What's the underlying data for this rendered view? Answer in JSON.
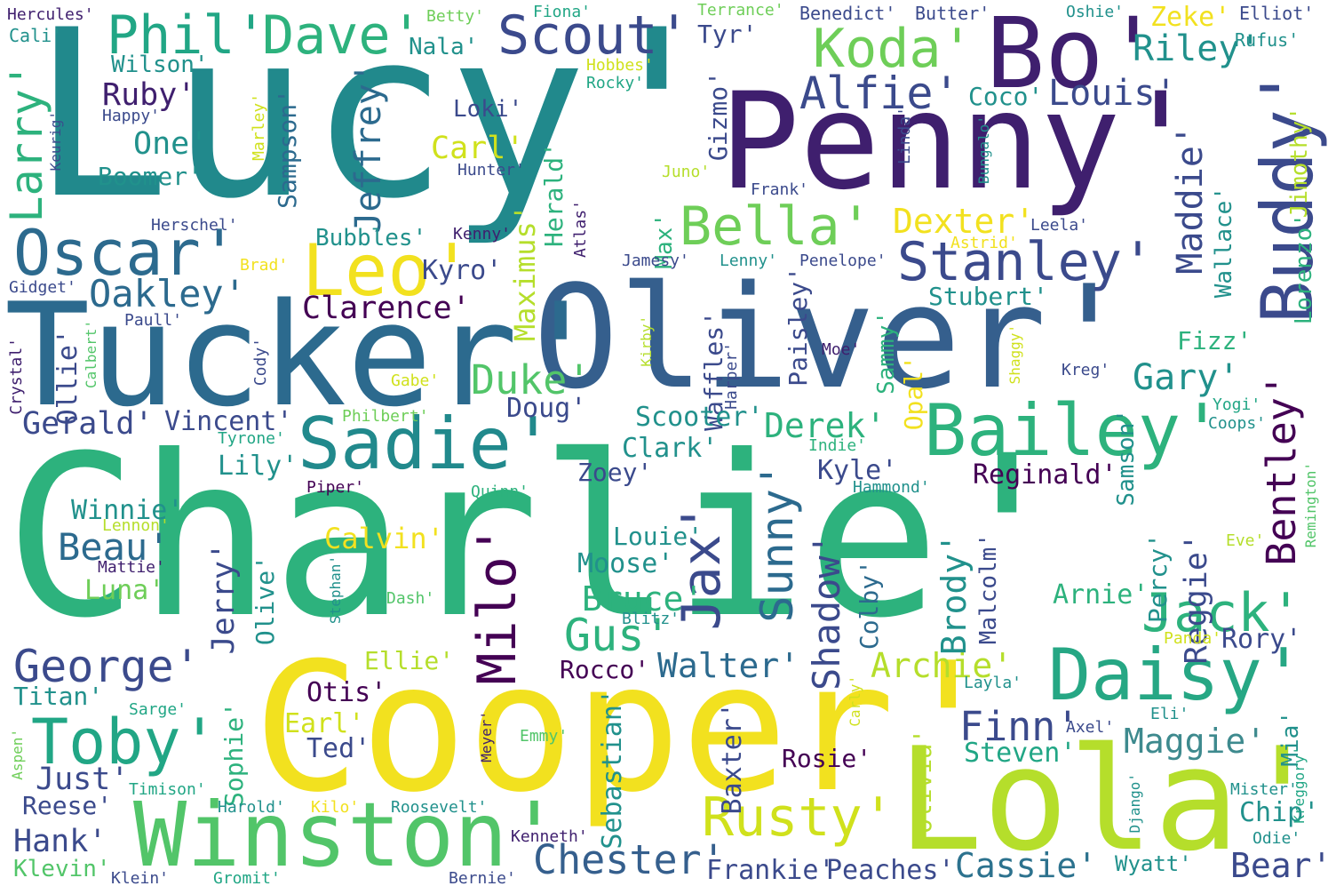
{
  "palette": {
    "purple": "#3f1f6e",
    "indigo": "#3b4a8c",
    "blue": "#355f8d",
    "teal": "#21898c",
    "green": "#2db27d",
    "lime": "#6ece58",
    "yellowgreen": "#b5de2b",
    "yellow": "#f2e11f"
  },
  "words": [
    {
      "id": "charlie",
      "text": "Charlie'",
      "color": "#2db27d"
    },
    {
      "id": "lucy",
      "text": "Lucy'",
      "color": "#21898c"
    },
    {
      "id": "penny",
      "text": "Penny'",
      "color": "#3f1f6e"
    },
    {
      "id": "oliver",
      "text": "Oliver'",
      "color": "#355f8d"
    },
    {
      "id": "tucker",
      "text": "Tucker'",
      "color": "#2c6a8e"
    },
    {
      "id": "cooper",
      "text": "Cooper'",
      "color": "#f2e11f"
    },
    {
      "id": "lola",
      "text": "Lola'",
      "color": "#b5de2b"
    },
    {
      "id": "winston",
      "text": "Winston'",
      "color": "#52c569"
    },
    {
      "id": "bo",
      "text": "Bo'",
      "color": "#3f1f6e"
    },
    {
      "id": "buddy",
      "text": "Buddy'",
      "color": "#3b4a8c"
    },
    {
      "id": "bailey",
      "text": "Bailey'",
      "color": "#2db27d"
    },
    {
      "id": "sadie",
      "text": "Sadie'",
      "color": "#21898c"
    },
    {
      "id": "daisy",
      "text": "Daisy'",
      "color": "#26a784"
    },
    {
      "id": "phil",
      "text": "Phil'",
      "color": "#21a685"
    },
    {
      "id": "dave",
      "text": "Dave'",
      "color": "#2db27d"
    },
    {
      "id": "scout",
      "text": "Scout'",
      "color": "#3b4a8c"
    },
    {
      "id": "koda",
      "text": "Koda'",
      "color": "#6ece58"
    },
    {
      "id": "riley",
      "text": "Riley'",
      "color": "#21918c"
    },
    {
      "id": "oscar",
      "text": "Oscar'",
      "color": "#2c6a8e"
    },
    {
      "id": "leo",
      "text": "Leo'",
      "color": "#f2e11f"
    },
    {
      "id": "bella",
      "text": "Bella'",
      "color": "#6ece58"
    },
    {
      "id": "stanley",
      "text": "Stanley'",
      "color": "#3b4a8c"
    },
    {
      "id": "toby",
      "text": "Toby'",
      "color": "#21a685"
    },
    {
      "id": "george",
      "text": "George'",
      "color": "#3b4a8c"
    },
    {
      "id": "rusty",
      "text": "Rusty'",
      "color": "#d0e11c"
    },
    {
      "id": "jack",
      "text": "Jack'",
      "color": "#2db27d"
    },
    {
      "id": "milo",
      "text": "Milo'",
      "color": "#440154"
    },
    {
      "id": "jax",
      "text": "Jax'",
      "color": "#3b4a8c"
    },
    {
      "id": "chester",
      "text": "Chester'",
      "color": "#355f8d"
    },
    {
      "id": "gus",
      "text": "Gus'",
      "color": "#2db27d"
    },
    {
      "id": "alfie",
      "text": "Alfie'",
      "color": "#3b4a8c"
    },
    {
      "id": "larry",
      "text": "Larry'",
      "color": "#2db27d"
    },
    {
      "id": "oakley",
      "text": "Oakley'",
      "color": "#2c6a8e"
    },
    {
      "id": "louis",
      "text": "Louis'",
      "color": "#3b4a8c"
    },
    {
      "id": "bentley",
      "text": "Bentley'",
      "color": "#440154"
    },
    {
      "id": "maddie",
      "text": "Maddie'",
      "color": "#3b4a8c"
    },
    {
      "id": "sunny",
      "text": "Sunny'",
      "color": "#2c6a8e"
    },
    {
      "id": "shadow",
      "text": "Shadow'",
      "color": "#3b4a8c"
    },
    {
      "id": "jeffrey",
      "text": "Jeffrey'",
      "color": "#2c6a8e"
    },
    {
      "id": "duke",
      "text": "Duke'",
      "color": "#52c569"
    },
    {
      "id": "gary",
      "text": "Gary'",
      "color": "#21918c"
    },
    {
      "id": "finn",
      "text": "Finn'",
      "color": "#3b4a8c"
    },
    {
      "id": "maggie",
      "text": "Maggie'",
      "color": "#3e8a8e"
    },
    {
      "id": "cassie",
      "text": "Cassie'",
      "color": "#2c728e"
    },
    {
      "id": "bear",
      "text": "Bear'",
      "color": "#3b4a8c"
    },
    {
      "id": "beau",
      "text": "Beau'",
      "color": "#2c6a8e"
    },
    {
      "id": "archie",
      "text": "Archie'",
      "color": "#b5de2b"
    },
    {
      "id": "walter",
      "text": "Walter'",
      "color": "#2c6a8e"
    },
    {
      "id": "bruce",
      "text": "Bruce'",
      "color": "#2db27d"
    },
    {
      "id": "derek",
      "text": "Derek'",
      "color": "#2db27d"
    },
    {
      "id": "dexter",
      "text": "Dexter'",
      "color": "#f2e11f"
    },
    {
      "id": "clarence",
      "text": "Clarence'",
      "color": "#440154"
    },
    {
      "id": "hank",
      "text": "Hank'",
      "color": "#3b4a8c"
    },
    {
      "id": "gerald",
      "text": "Gerald'",
      "color": "#3b4a8c"
    },
    {
      "id": "ruby",
      "text": "Ruby'",
      "color": "#3f1f6e"
    },
    {
      "id": "one",
      "text": "One'",
      "color": "#21918c"
    },
    {
      "id": "boomer",
      "text": "Boomer'",
      "color": "#21918c"
    },
    {
      "id": "wilson",
      "text": "Wilson'",
      "color": "#21918c"
    },
    {
      "id": "nala",
      "text": "Nala'",
      "color": "#21918c"
    },
    {
      "id": "carl",
      "text": "Carl'",
      "color": "#d0e11c"
    },
    {
      "id": "loki",
      "text": "Loki'",
      "color": "#3b4a8c"
    },
    {
      "id": "sampson",
      "text": "Sampson'",
      "color": "#2c6a8e"
    },
    {
      "id": "gizmo",
      "text": "Gizmo'",
      "color": "#3b4a8c"
    },
    {
      "id": "herald",
      "text": "Herald'",
      "color": "#2db27d"
    },
    {
      "id": "maximus",
      "text": "Maximus'",
      "color": "#b5de2b"
    },
    {
      "id": "tyr",
      "text": "Tyr'",
      "color": "#3b4a8c"
    },
    {
      "id": "coco",
      "text": "Coco'",
      "color": "#21918c"
    },
    {
      "id": "zeke",
      "text": "Zeke'",
      "color": "#f2e11f"
    },
    {
      "id": "jimothy",
      "text": "Jimothy'",
      "color": "#b5de2b"
    },
    {
      "id": "lorenzo",
      "text": "Lorenzo'",
      "color": "#2db27d"
    },
    {
      "id": "wallace",
      "text": "Wallace'",
      "color": "#21918c"
    },
    {
      "id": "kyro",
      "text": "Kyro'",
      "color": "#3b4a8c"
    },
    {
      "id": "bubbles",
      "text": "Bubbles'",
      "color": "#21918c"
    },
    {
      "id": "max",
      "text": "Max'",
      "color": "#2db27d"
    },
    {
      "id": "paisley",
      "text": "Paisley'",
      "color": "#3b4a8c"
    },
    {
      "id": "waffles",
      "text": "Waffles'",
      "color": "#3b4a8c"
    },
    {
      "id": "stubert",
      "text": "Stubert'",
      "color": "#21918c"
    },
    {
      "id": "sammy",
      "text": "Sammy'",
      "color": "#2db27d"
    },
    {
      "id": "opal",
      "text": "Opal'",
      "color": "#f2e11f"
    },
    {
      "id": "samson",
      "text": "Samson'",
      "color": "#21918c"
    },
    {
      "id": "fizz",
      "text": "Fizz'",
      "color": "#2db27d"
    },
    {
      "id": "ollie",
      "text": "Ollie'",
      "color": "#3b4a8c"
    },
    {
      "id": "vincent",
      "text": "Vincent'",
      "color": "#3b4a8c"
    },
    {
      "id": "doug",
      "text": "Doug'",
      "color": "#3b4a8c"
    },
    {
      "id": "scooter",
      "text": "Scooter'",
      "color": "#21918c"
    },
    {
      "id": "clark",
      "text": "Clark'",
      "color": "#21918c"
    },
    {
      "id": "zoey",
      "text": "Zoey'",
      "color": "#3b4a8c"
    },
    {
      "id": "kyle",
      "text": "Kyle'",
      "color": "#3b4a8c"
    },
    {
      "id": "reginald",
      "text": "Reginald'",
      "color": "#440154"
    },
    {
      "id": "reggie",
      "text": "Reggie'",
      "color": "#3b4a8c"
    },
    {
      "id": "percy",
      "text": "Percy'",
      "color": "#21918c"
    },
    {
      "id": "brody",
      "text": "Brody'",
      "color": "#21918c"
    },
    {
      "id": "malcolm",
      "text": "Malcolm'",
      "color": "#3b4a8c"
    },
    {
      "id": "colby",
      "text": "Colby'",
      "color": "#2c6a8e"
    },
    {
      "id": "arnie",
      "text": "Arnie'",
      "color": "#2db27d"
    },
    {
      "id": "rory",
      "text": "Rory'",
      "color": "#3b4a8c"
    },
    {
      "id": "winnie",
      "text": "Winnie'",
      "color": "#21918c"
    },
    {
      "id": "luna",
      "text": "Luna'",
      "color": "#6ece58"
    },
    {
      "id": "jerry",
      "text": "Jerry'",
      "color": "#3b4a8c"
    },
    {
      "id": "olive",
      "text": "Olive'",
      "color": "#21918c"
    },
    {
      "id": "lily",
      "text": "Lily'",
      "color": "#21918c"
    },
    {
      "id": "calvin",
      "text": "Calvin'",
      "color": "#f2e11f"
    },
    {
      "id": "louie",
      "text": "Louie'",
      "color": "#21918c"
    },
    {
      "id": "moose",
      "text": "Moose'",
      "color": "#21918c"
    },
    {
      "id": "titan",
      "text": "Titan'",
      "color": "#21918c"
    },
    {
      "id": "otis",
      "text": "Otis'",
      "color": "#440154"
    },
    {
      "id": "ellie",
      "text": "Ellie'",
      "color": "#b5de2b"
    },
    {
      "id": "rocco",
      "text": "Rocco'",
      "color": "#440154"
    },
    {
      "id": "sebastian",
      "text": "Sebastian'",
      "color": "#21918c"
    },
    {
      "id": "baxter",
      "text": "Baxter'",
      "color": "#3b4a8c"
    },
    {
      "id": "rosie",
      "text": "Rosie'",
      "color": "#440154"
    },
    {
      "id": "steven",
      "text": "Steven'",
      "color": "#21a685"
    },
    {
      "id": "olivia",
      "text": "Olivia'",
      "color": "#b5de2b"
    },
    {
      "id": "sophie",
      "text": "Sophie'",
      "color": "#2db27d"
    },
    {
      "id": "earl",
      "text": "Earl'",
      "color": "#d0e11c"
    },
    {
      "id": "ted",
      "text": "Ted'",
      "color": "#3b4a8c"
    },
    {
      "id": "just",
      "text": "Just'",
      "color": "#3b4a8c"
    },
    {
      "id": "reese",
      "text": "Reese'",
      "color": "#3b4a8c"
    },
    {
      "id": "klevin",
      "text": "Klevin'",
      "color": "#52c569"
    },
    {
      "id": "frankie",
      "text": "Frankie'",
      "color": "#3b4a8c"
    },
    {
      "id": "peaches",
      "text": "Peaches'",
      "color": "#3b4a8c"
    },
    {
      "id": "wyatt",
      "text": "Wyatt'",
      "color": "#21918c"
    },
    {
      "id": "chip",
      "text": "Chip'",
      "color": "#21918c"
    },
    {
      "id": "mia",
      "text": "Mia'",
      "color": "#21918c"
    },
    {
      "id": "hercules",
      "text": "Hercules'",
      "color": "#3f1f6e"
    },
    {
      "id": "betty",
      "text": "Betty'",
      "color": "#6ece58"
    },
    {
      "id": "fiona",
      "text": "Fiona'",
      "color": "#21a685"
    },
    {
      "id": "terrance",
      "text": "Terrance'",
      "color": "#6ece58"
    },
    {
      "id": "benedict",
      "text": "Benedict'",
      "color": "#3b4a8c"
    },
    {
      "id": "butter",
      "text": "Butter'",
      "color": "#3b4a8c"
    },
    {
      "id": "oshie",
      "text": "Oshie'",
      "color": "#21918c"
    },
    {
      "id": "elliot",
      "text": "Elliot'",
      "color": "#3b4a8c"
    },
    {
      "id": "rufus",
      "text": "Rufus'",
      "color": "#21918c"
    },
    {
      "id": "cali",
      "text": "Cali'",
      "color": "#21918c"
    },
    {
      "id": "hobbes",
      "text": "Hobbes'",
      "color": "#d0e11c"
    },
    {
      "id": "rocky",
      "text": "Rocky'",
      "color": "#21a685"
    },
    {
      "id": "keurig",
      "text": "Keurig'",
      "color": "#3b4a8c"
    },
    {
      "id": "happy",
      "text": "Happy'",
      "color": "#3b4a8c"
    },
    {
      "id": "marley",
      "text": "Marley'",
      "color": "#d0e11c"
    },
    {
      "id": "hunter",
      "text": "Hunter'",
      "color": "#3b4a8c"
    },
    {
      "id": "juno",
      "text": "Juno'",
      "color": "#b5de2b"
    },
    {
      "id": "frank",
      "text": "Frank'",
      "color": "#3b4a8c"
    },
    {
      "id": "linda",
      "text": "Linda'",
      "color": "#3b4a8c"
    },
    {
      "id": "bungalo",
      "text": "Bungalo'",
      "color": "#21918c"
    },
    {
      "id": "herschel",
      "text": "Herschel'",
      "color": "#3b4a8c"
    },
    {
      "id": "kenny",
      "text": "Kenny'",
      "color": "#3f1f6e"
    },
    {
      "id": "atlas",
      "text": "Atlas'",
      "color": "#3f1f6e"
    },
    {
      "id": "leela",
      "text": "Leela'",
      "color": "#3b4a8c"
    },
    {
      "id": "astrid",
      "text": "Astrid'",
      "color": "#f2e11f"
    },
    {
      "id": "brad",
      "text": "Brad'",
      "color": "#f2e11f"
    },
    {
      "id": "jamesy",
      "text": "Jamesy'",
      "color": "#3b4a8c"
    },
    {
      "id": "lenny",
      "text": "Lenny'",
      "color": "#21918c"
    },
    {
      "id": "penelope",
      "text": "Penelope'",
      "color": "#3b4a8c"
    },
    {
      "id": "gidget",
      "text": "Gidget'",
      "color": "#3b4a8c"
    },
    {
      "id": "paull",
      "text": "Paull'",
      "color": "#3b4a8c"
    },
    {
      "id": "crystal",
      "text": "Crystal'",
      "color": "#3f1f6e"
    },
    {
      "id": "calbert",
      "text": "Calbert'",
      "color": "#52c569"
    },
    {
      "id": "cody",
      "text": "Cody'",
      "color": "#3b4a8c"
    },
    {
      "id": "kirby",
      "text": "Kirby'",
      "color": "#b5de2b"
    },
    {
      "id": "harper",
      "text": "Harper'",
      "color": "#3b4a8c"
    },
    {
      "id": "moe",
      "text": "Moe'",
      "color": "#3f1f6e"
    },
    {
      "id": "shaggy",
      "text": "Shaggy'",
      "color": "#d0e11c"
    },
    {
      "id": "kreg",
      "text": "Kreg'",
      "color": "#3b4a8c"
    },
    {
      "id": "gabe",
      "text": "Gabe'",
      "color": "#d0e11c"
    },
    {
      "id": "philbert",
      "text": "Philbert'",
      "color": "#6ece58"
    },
    {
      "id": "tyrone",
      "text": "Tyrone'",
      "color": "#21a685"
    },
    {
      "id": "indie",
      "text": "Indie'",
      "color": "#2db27d"
    },
    {
      "id": "yogi",
      "text": "Yogi'",
      "color": "#21a685"
    },
    {
      "id": "coops",
      "text": "Coops'",
      "color": "#21918c"
    },
    {
      "id": "hammond",
      "text": "Hammond'",
      "color": "#21918c"
    },
    {
      "id": "piper",
      "text": "Piper'",
      "color": "#440154"
    },
    {
      "id": "quinn",
      "text": "Quinn'",
      "color": "#2db27d"
    },
    {
      "id": "lennon",
      "text": "Lennon'",
      "color": "#b5de2b"
    },
    {
      "id": "mattie",
      "text": "Mattie'",
      "color": "#3f1f6e"
    },
    {
      "id": "stephan",
      "text": "Stephan'",
      "color": "#21918c"
    },
    {
      "id": "dash",
      "text": "Dash'",
      "color": "#52c569"
    },
    {
      "id": "blitz",
      "text": "Blitz'",
      "color": "#21918c"
    },
    {
      "id": "eve",
      "text": "Eve'",
      "color": "#b5de2b"
    },
    {
      "id": "remington",
      "text": "Remington'",
      "color": "#52c569"
    },
    {
      "id": "panda",
      "text": "Panda'",
      "color": "#d0e11c"
    },
    {
      "id": "layla",
      "text": "Layla'",
      "color": "#21918c"
    },
    {
      "id": "sarge",
      "text": "Sarge'",
      "color": "#21a685"
    },
    {
      "id": "aspen",
      "text": "Aspen'",
      "color": "#6ece58"
    },
    {
      "id": "meyer",
      "text": "Meyer'",
      "color": "#3f1f6e"
    },
    {
      "id": "emmy",
      "text": "Emmy'",
      "color": "#52c569"
    },
    {
      "id": "carly",
      "text": "Carly'",
      "color": "#d0e11c"
    },
    {
      "id": "axel",
      "text": "Axel'",
      "color": "#3b4a8c"
    },
    {
      "id": "eli",
      "text": "Eli'",
      "color": "#21918c"
    },
    {
      "id": "kreggory",
      "text": "Kreggory'",
      "color": "#21a685"
    },
    {
      "id": "timison",
      "text": "Timison'",
      "color": "#21a685"
    },
    {
      "id": "harold",
      "text": "Harold'",
      "color": "#21918c"
    },
    {
      "id": "kilo",
      "text": "Kilo'",
      "color": "#f2e11f"
    },
    {
      "id": "roosevelt",
      "text": "Roosevelt'",
      "color": "#21918c"
    },
    {
      "id": "django",
      "text": "Django'",
      "color": "#21918c"
    },
    {
      "id": "mister",
      "text": "Mister'",
      "color": "#21918c"
    },
    {
      "id": "kenneth",
      "text": "Kenneth'",
      "color": "#3f1f6e"
    },
    {
      "id": "odie",
      "text": "Odie'",
      "color": "#21918c"
    },
    {
      "id": "klein",
      "text": "Klein'",
      "color": "#3b4a8c"
    },
    {
      "id": "gromit",
      "text": "Gromit'",
      "color": "#21a685"
    },
    {
      "id": "bernie",
      "text": "Bernie'",
      "color": "#3b4a8c"
    }
  ]
}
